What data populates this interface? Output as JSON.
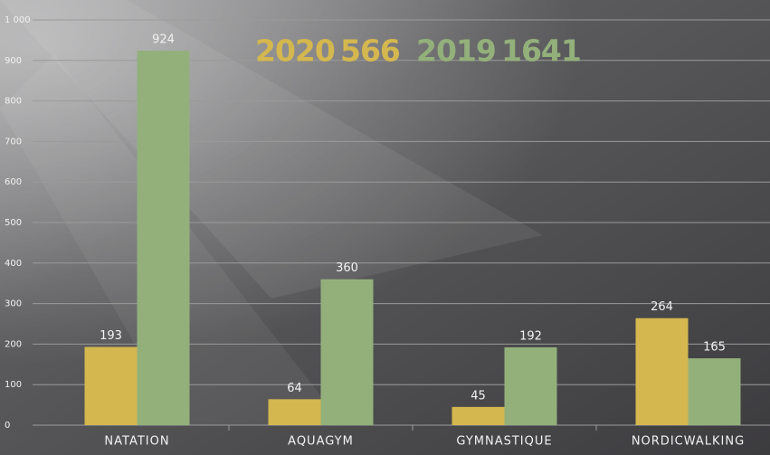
{
  "chart_data": {
    "type": "bar",
    "categories": [
      "NATATION",
      "AQUAGYM",
      "GYMNASTIQUE",
      "NORDICWALKING"
    ],
    "series": [
      {
        "name": "2020",
        "total": 566,
        "color": "#d4b74f",
        "values": [
          193,
          64,
          45,
          264
        ]
      },
      {
        "name": "2019",
        "total": 1641,
        "color": "#93b07b",
        "values": [
          924,
          360,
          192,
          165
        ]
      }
    ],
    "ylim": [
      0,
      1000
    ],
    "yticks": [
      0,
      100,
      200,
      300,
      400,
      500,
      600,
      700,
      800,
      900,
      {
        "value": 1000,
        "label": "1 000"
      }
    ],
    "grid": true
  }
}
